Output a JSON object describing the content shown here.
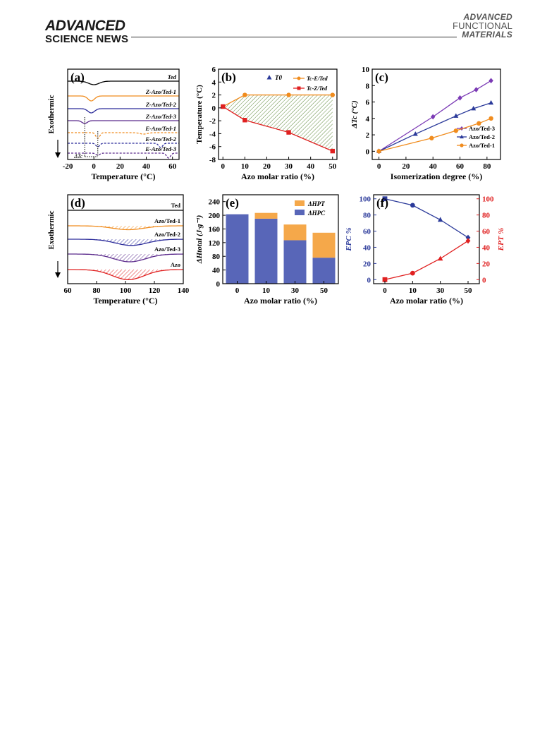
{
  "header": {
    "left_line1": "ADVANCED",
    "left_line2": "SCIENCE NEWS",
    "right_line1": "ADVANCED",
    "right_line2": "FUNCTIONAL",
    "right_line3": "MATERIALS"
  },
  "chart_data": [
    {
      "panel": "(a)",
      "type": "line",
      "xlabel": "Temperature (°C)",
      "ylabel": "Exothermic",
      "xlim": [
        -20,
        65
      ],
      "x_ticks": [
        -20,
        0,
        20,
        40,
        60
      ],
      "series": [
        {
          "name": "Ted",
          "color": "#000000",
          "style": "solid"
        },
        {
          "name": "Z-Azo/Ted-1",
          "color": "#f08c1e",
          "style": "solid"
        },
        {
          "name": "Z-Azo/Ted-2",
          "color": "#2b2b9a",
          "style": "solid"
        },
        {
          "name": "Z-Azo/Ted-3",
          "color": "#5b2a8c",
          "style": "solid"
        },
        {
          "name": "E-Azo/Ted-1",
          "color": "#f08c1e",
          "style": "dashed"
        },
        {
          "name": "E-Azo/Ted-2",
          "color": "#2b2b9a",
          "style": "dashed"
        },
        {
          "name": "E-Azo/Ted-3",
          "color": "#5b2a8c",
          "style": "dashed"
        }
      ],
      "annotation": "ΔTc"
    },
    {
      "panel": "(b)",
      "type": "line",
      "xlabel": "Azo molar ratio (%)",
      "ylabel": "Temperature (°C)",
      "xlim": [
        -2,
        52
      ],
      "ylim": [
        -8,
        6
      ],
      "x_ticks": [
        0,
        10,
        20,
        30,
        40,
        50
      ],
      "y_ticks": [
        -8,
        -6,
        -4,
        -2,
        0,
        2,
        4,
        6
      ],
      "legend": {
        "t0": "T0",
        "te": "Tc-E/Ted",
        "tz": "Tc-Z/Ted"
      },
      "series": [
        {
          "name": "T0",
          "color": "#2b3a9a",
          "marker": "triangle",
          "x": [
            0
          ],
          "y": [
            0.2
          ]
        },
        {
          "name": "Tc-E/Ted",
          "color": "#f08c1e",
          "marker": "circle",
          "x": [
            0,
            10,
            30,
            50
          ],
          "y": [
            0.2,
            2.0,
            2.0,
            2.0
          ]
        },
        {
          "name": "Tc-Z/Ted",
          "color": "#e02020",
          "marker": "square",
          "x": [
            0,
            10,
            30,
            50
          ],
          "y": [
            0.2,
            -1.9,
            -3.8,
            -6.7
          ]
        }
      ]
    },
    {
      "panel": "(c)",
      "type": "line",
      "xlabel": "Isomerization degree (%)",
      "ylabel": "ΔTc (°C)",
      "xlim": [
        -5,
        90
      ],
      "ylim": [
        -1,
        10
      ],
      "x_ticks": [
        0,
        20,
        40,
        60,
        80
      ],
      "y_ticks": [
        0,
        2,
        4,
        6,
        8,
        10
      ],
      "legend_position": "bottom-right",
      "series": [
        {
          "name": "Azo/Ted-3",
          "color": "#7b3ab5",
          "marker": "diamond",
          "x": [
            0,
            40,
            60,
            72,
            83
          ],
          "y": [
            0,
            4.2,
            6.5,
            7.5,
            8.6
          ]
        },
        {
          "name": "Azo/Ted-2",
          "color": "#2b3a9a",
          "marker": "triangle",
          "x": [
            0,
            27,
            57,
            70,
            83
          ],
          "y": [
            0,
            2.1,
            4.3,
            5.2,
            5.9
          ]
        },
        {
          "name": "Azo/Ted-1",
          "color": "#f08c1e",
          "marker": "circle",
          "x": [
            0,
            39,
            57,
            74,
            83
          ],
          "y": [
            0,
            1.6,
            2.5,
            3.4,
            4.0
          ]
        }
      ]
    },
    {
      "panel": "(d)",
      "type": "area",
      "xlabel": "Temperature (°C)",
      "ylabel": "Exothermic",
      "xlim": [
        60,
        140
      ],
      "x_ticks": [
        60,
        80,
        100,
        120,
        140
      ],
      "series": [
        {
          "name": "Ted",
          "color": "#000000",
          "peak": 100,
          "depth": 0
        },
        {
          "name": "Azo/Ted-1",
          "color": "#f08c1e",
          "peak": 102,
          "depth": 0.5
        },
        {
          "name": "Azo/Ted-2",
          "color": "#2b2b9a",
          "peak": 104,
          "depth": 0.8
        },
        {
          "name": "Azo/Ted-3",
          "color": "#5b2a8c",
          "peak": 103,
          "depth": 1.0
        },
        {
          "name": "Azo",
          "color": "#e02020",
          "peak": 102,
          "depth": 1.3
        }
      ]
    },
    {
      "panel": "(e)",
      "type": "bar",
      "xlabel": "Azo molar ratio (%)",
      "ylabel": "ΔHtotal (J·g⁻¹)",
      "categories": [
        "0",
        "10",
        "30",
        "50"
      ],
      "ylim": [
        0,
        260
      ],
      "y_ticks": [
        0,
        40,
        80,
        120,
        160,
        200,
        240
      ],
      "series": [
        {
          "name": "ΔHPC",
          "color": "#5866b8",
          "values": [
            203,
            190,
            127,
            76
          ]
        },
        {
          "name": "ΔHPT",
          "color": "#f5a84a",
          "values": [
            0,
            17,
            46,
            73
          ]
        }
      ],
      "legend_position": "top-right"
    },
    {
      "panel": "(f)",
      "type": "line",
      "xlabel": "Azo molar ratio (%)",
      "ylabel_left": "EPC %",
      "ylabel_right": "EPT %",
      "x_categories": [
        "0",
        "10",
        "30",
        "50"
      ],
      "ylim": [
        -5,
        105
      ],
      "y_ticks": [
        0,
        20,
        40,
        60,
        80,
        100
      ],
      "series": [
        {
          "name": "EPC",
          "axis": "left",
          "color": "#2b3a9a",
          "values": [
            100,
            92,
            74,
            52
          ]
        },
        {
          "name": "EPT",
          "axis": "right",
          "color": "#e02020",
          "values": [
            0,
            8,
            26,
            48
          ]
        }
      ]
    }
  ]
}
